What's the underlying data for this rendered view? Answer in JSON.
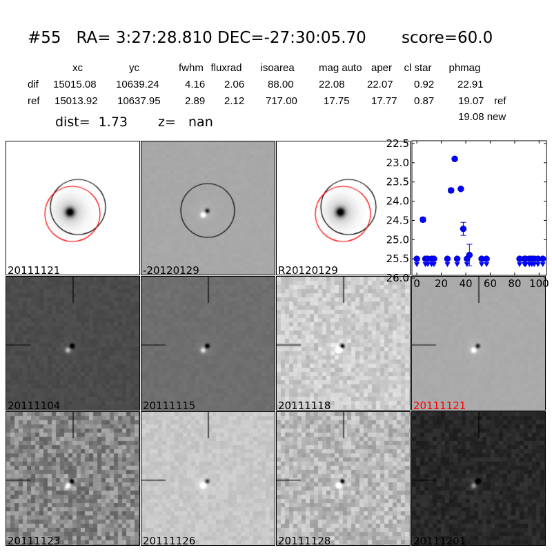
{
  "title": "#55   RA= 3:27:28.810 DEC=-27:30:05.70       score=60.0",
  "table": {
    "headers": [
      "xc",
      "yc",
      "fwhm",
      "fluxrad",
      "isoarea",
      "mag auto",
      "aper",
      "cl star",
      "phmag"
    ],
    "rows": [
      {
        "label": "dif",
        "values": [
          "15015.08",
          "10639.24",
          "4.16",
          "2.06",
          "88.00",
          "22.08",
          "22.07",
          "0.92",
          "22.91"
        ],
        "extra": ""
      },
      {
        "label": "ref",
        "values": [
          "15013.92",
          "10637.95",
          "2.89",
          "2.12",
          "717.00",
          "17.75",
          "17.77",
          "0.87",
          "19.07"
        ],
        "extra": "ref"
      }
    ],
    "phmag_new": "19.08 new"
  },
  "dist_text": "dist=  1.73",
  "z_text": "z=   nan",
  "stamps": [
    {
      "label": "20111121",
      "color": "#000000"
    },
    {
      "label": "-20120129",
      "color": "#000000"
    },
    {
      "label": "R20120129",
      "color": "#000000"
    },
    {
      "label": "20111104",
      "color": "#000000"
    },
    {
      "label": "20111115",
      "color": "#000000"
    },
    {
      "label": "20111118",
      "color": "#000000"
    },
    {
      "label": "20111121",
      "color": "#ff0000"
    },
    {
      "label": "20111123",
      "color": "#000000"
    },
    {
      "label": "20111126",
      "color": "#000000"
    },
    {
      "label": "20111128",
      "color": "#000000"
    },
    {
      "label": "20111201",
      "color": "#000000"
    }
  ],
  "chart_data": {
    "type": "scatter",
    "xlim": [
      -4,
      106
    ],
    "ylim": [
      26.0,
      22.5
    ],
    "y_inverted": true,
    "xticks": [
      "0",
      "20",
      "40",
      "60",
      "80",
      "100"
    ],
    "yticks": [
      "22.5",
      "23.0",
      "23.5",
      "24.0",
      "24.5",
      "25.0",
      "25.5",
      "26.0"
    ],
    "marker_color": "#0000ff",
    "detections": [
      {
        "x": 5,
        "y": 24.48,
        "err": 0.06
      },
      {
        "x": 28,
        "y": 23.72,
        "err": 0.06
      },
      {
        "x": 31,
        "y": 22.9,
        "err": 0.03
      },
      {
        "x": 36,
        "y": 23.68,
        "err": 0.04
      },
      {
        "x": 38,
        "y": 24.72,
        "err": 0.17
      },
      {
        "x": 43,
        "y": 25.4,
        "err": 0.28
      }
    ],
    "upper_limits_x": [
      0,
      7,
      9,
      12,
      14,
      25,
      33,
      41,
      53,
      57,
      84,
      88,
      89,
      92,
      94,
      96,
      99,
      103
    ],
    "upper_limit_mag": 25.5
  }
}
